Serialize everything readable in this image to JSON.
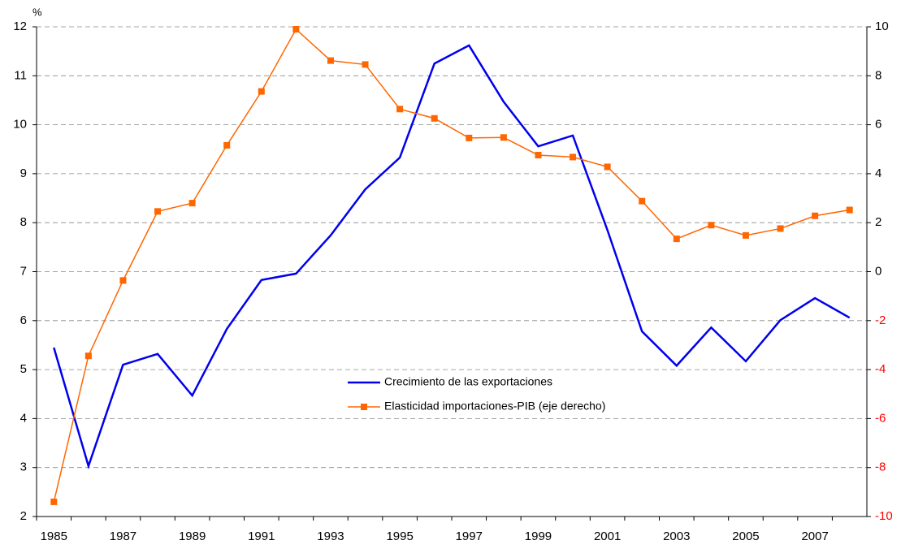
{
  "chart_data": {
    "type": "line",
    "y_unit_label": "%",
    "categories": [
      "1985",
      null,
      "1987",
      null,
      "1989",
      null,
      "1991",
      null,
      "1993",
      null,
      "1995",
      null,
      "1997",
      null,
      "1999",
      null,
      "2001",
      null,
      "2003",
      null,
      "2005",
      null,
      "2007",
      null
    ],
    "series": [
      {
        "name": "Crecimiento de las exportaciones",
        "color": "#0000ee",
        "marker": "none",
        "values": [
          5.45,
          3.03,
          5.1,
          5.32,
          4.47,
          5.83,
          6.83,
          6.96,
          7.74,
          8.68,
          9.33,
          11.25,
          11.62,
          10.47,
          9.56,
          9.78,
          7.85,
          5.78,
          5.08,
          5.86,
          5.17,
          6.01,
          6.46,
          6.06
        ]
      },
      {
        "name": "Elasticidad importaciones-PIB (eje derecho)",
        "color": "#ff6600",
        "marker": "square",
        "axis": "y2",
        "values": [
          -9.4,
          -3.44,
          -0.36,
          2.46,
          2.8,
          5.16,
          7.36,
          9.9,
          8.62,
          8.46,
          6.64,
          6.26,
          5.46,
          5.48,
          4.76,
          4.68,
          4.28,
          2.88,
          1.34,
          1.9,
          1.48,
          1.76,
          2.28,
          2.52
        ]
      }
    ],
    "ylim": [
      2,
      12
    ],
    "yticks": [
      2,
      3,
      4,
      5,
      6,
      7,
      8,
      9,
      10,
      11,
      12
    ],
    "y2lim": [
      -10,
      10
    ],
    "y2ticks": [
      -10,
      -8,
      -6,
      -4,
      -2,
      0,
      2,
      4,
      6,
      8,
      10
    ],
    "y2_negative_tick_color": "#ff0000",
    "grid": true,
    "legend": "center"
  }
}
